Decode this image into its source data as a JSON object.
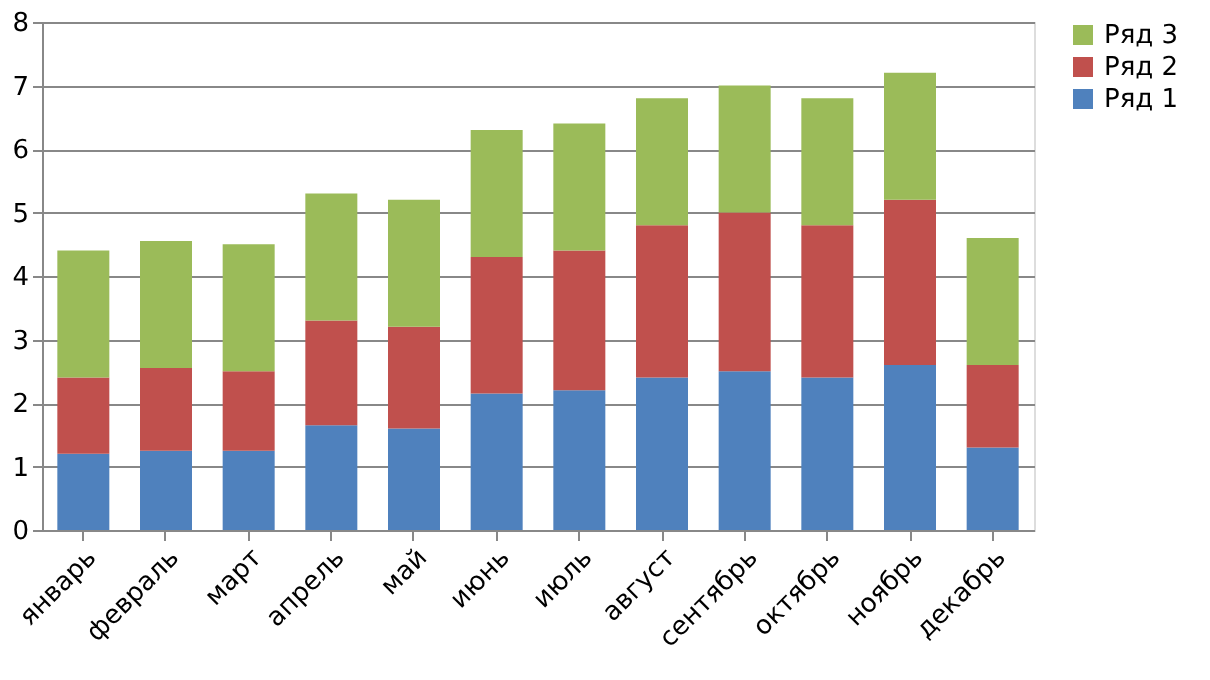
{
  "chart_data": {
    "type": "bar",
    "stacked": true,
    "categories": [
      "январь",
      "февраль",
      "март",
      "апрель",
      "май",
      "июнь",
      "июль",
      "август",
      "сентябрь",
      "октябрь",
      "ноябрь",
      "декабрь"
    ],
    "series": [
      {
        "name": "Ряд 1",
        "color": "#4f81bd",
        "values": [
          1.2,
          1.25,
          1.25,
          1.65,
          1.6,
          2.15,
          2.2,
          2.4,
          2.5,
          2.4,
          2.6,
          1.3
        ]
      },
      {
        "name": "Ряд 2",
        "color": "#c0504d",
        "values": [
          1.2,
          1.3,
          1.25,
          1.65,
          1.6,
          2.15,
          2.2,
          2.4,
          2.5,
          2.4,
          2.6,
          1.3
        ]
      },
      {
        "name": "Ряд 3",
        "color": "#9bbb59",
        "values": [
          2.0,
          2.0,
          2.0,
          2.0,
          2.0,
          2.0,
          2.0,
          2.0,
          2.0,
          2.0,
          2.0,
          2.0
        ]
      }
    ],
    "ylim": [
      0,
      8
    ],
    "yticks": [
      0,
      1,
      2,
      3,
      4,
      5,
      6,
      7,
      8
    ],
    "grid": "y",
    "legend": "right"
  }
}
